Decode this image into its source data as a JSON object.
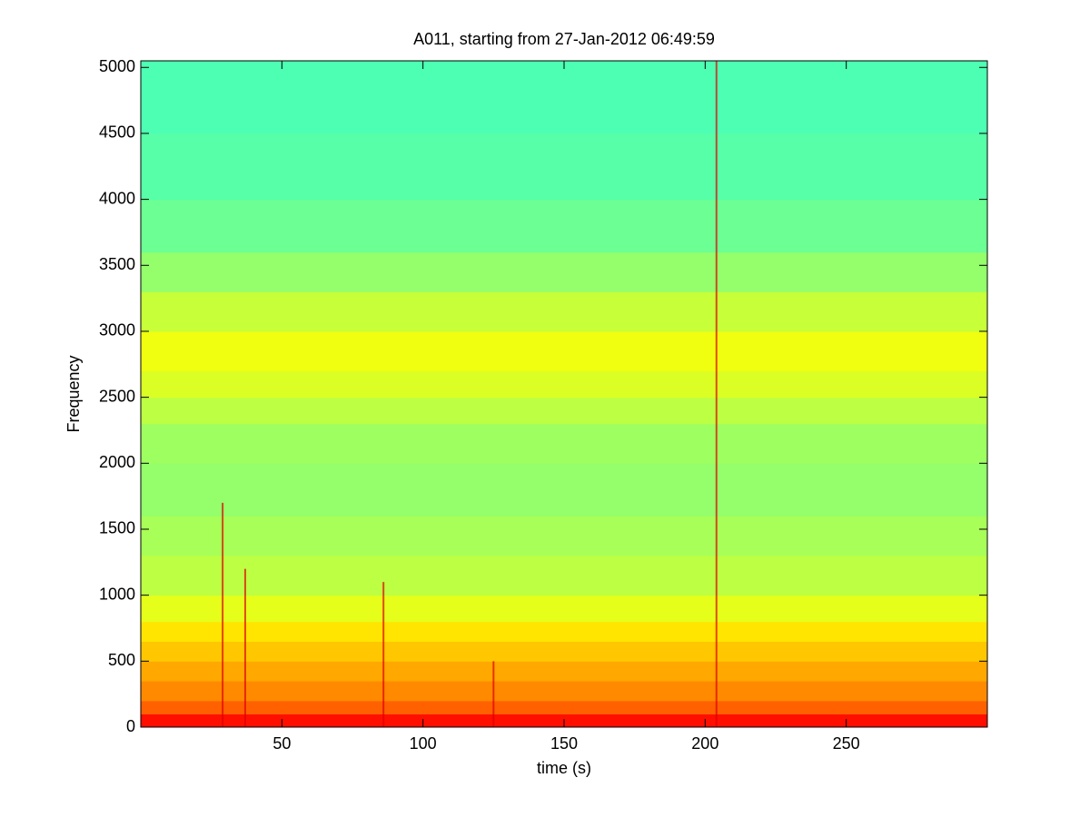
{
  "chart_data": {
    "type": "spectrogram",
    "title": "A011, starting from 27-Jan-2012 06:49:59",
    "xlabel": "time (s)",
    "ylabel": "Frequency",
    "xlim": [
      0,
      300
    ],
    "ylim": [
      0,
      5050
    ],
    "xticks": [
      50,
      100,
      150,
      200,
      250
    ],
    "yticks": [
      0,
      500,
      1000,
      1500,
      2000,
      2500,
      3000,
      3500,
      4000,
      4500,
      5000
    ],
    "colormap": "jet",
    "bins": [
      0,
      100,
      200,
      350,
      500,
      650,
      800,
      1000,
      1300,
      1600,
      2000,
      2300,
      2500,
      2700,
      3000,
      3300,
      3600,
      4000,
      4500,
      5050
    ],
    "intensity": [
      0.86,
      0.78,
      0.74,
      0.71,
      0.68,
      0.65,
      0.6,
      0.56,
      0.54,
      0.52,
      0.53,
      0.56,
      0.59,
      0.61,
      0.57,
      0.52,
      0.48,
      0.46,
      0.45
    ],
    "events": {
      "color": "#e00000",
      "x": [
        29,
        37,
        86,
        125,
        204
      ],
      "top": [
        1700,
        1200,
        1100,
        500,
        5050
      ]
    }
  }
}
